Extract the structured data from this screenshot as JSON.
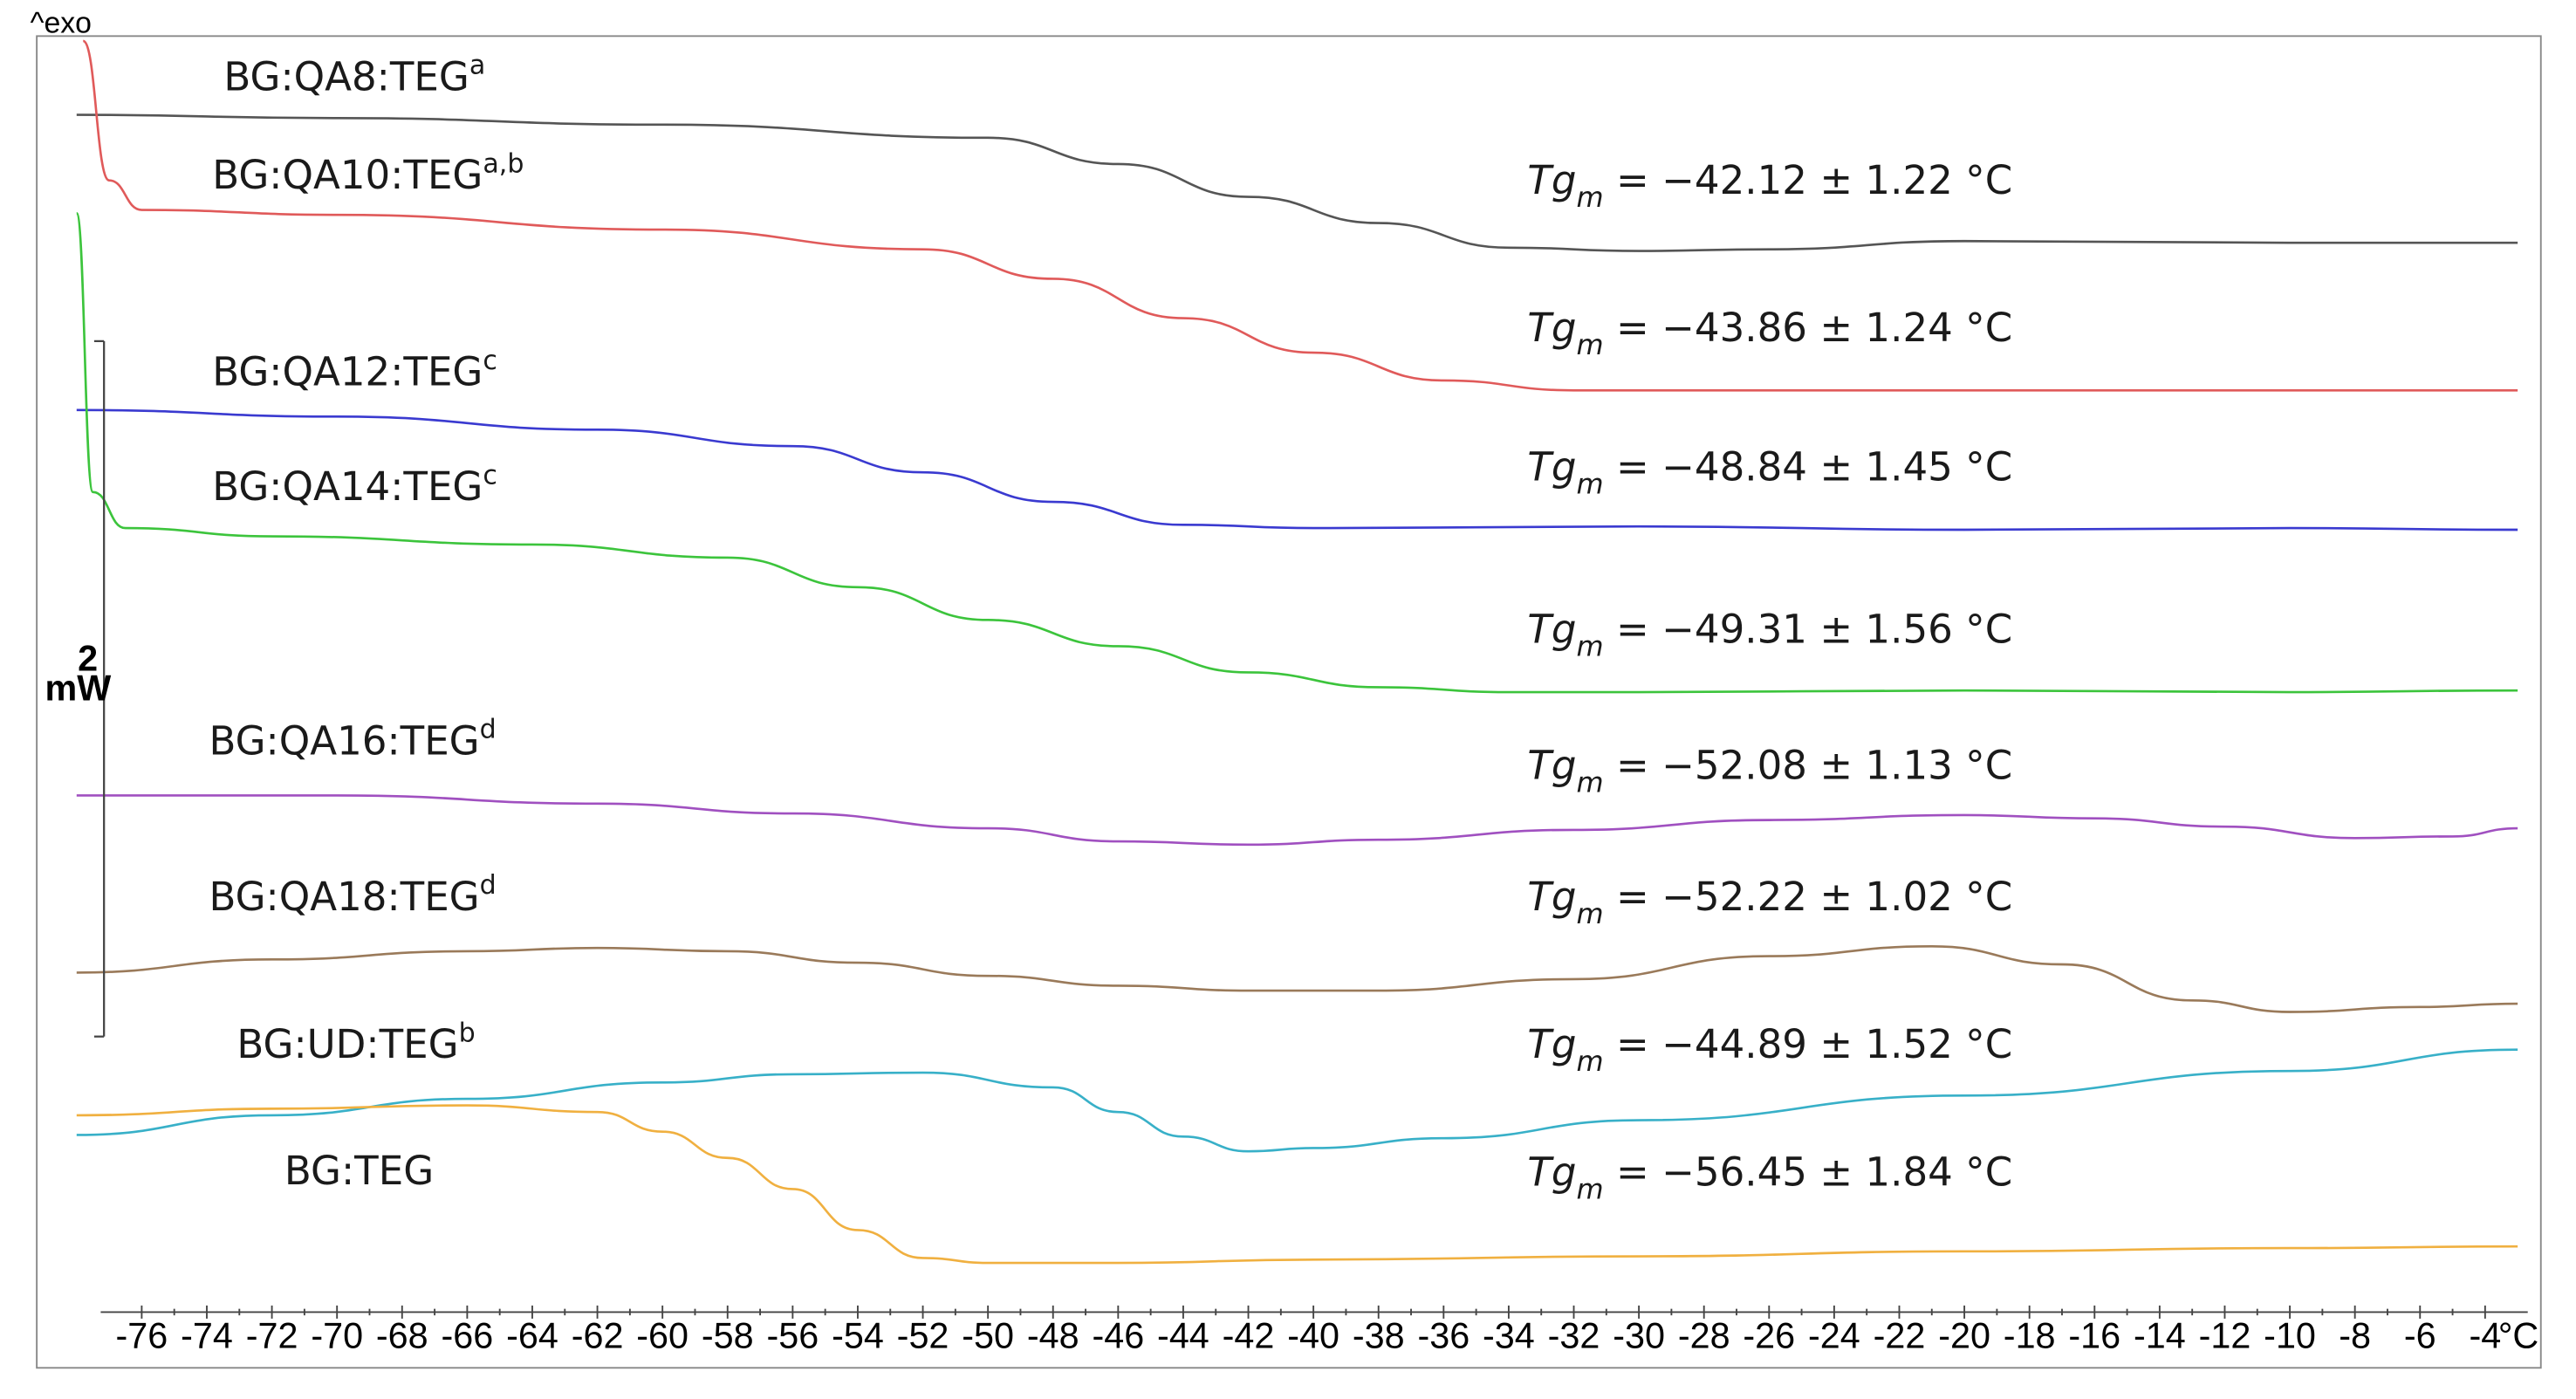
{
  "chart_data": {
    "type": "line",
    "corner_label": "^exo",
    "scale_value": "2",
    "scale_unit": "mW",
    "x_unit": "°C",
    "xlim": [
      -78,
      -3
    ],
    "x_ticks": [
      -76,
      -74,
      -72,
      -70,
      -68,
      -66,
      -64,
      -62,
      -60,
      -58,
      -56,
      -54,
      -52,
      -50,
      -48,
      -46,
      -44,
      -42,
      -40,
      -38,
      -36,
      -34,
      -32,
      -30,
      -28,
      -26,
      -24,
      -22,
      -20,
      -18,
      -16,
      -14,
      -12,
      -10,
      -8,
      -6,
      -4
    ],
    "grid": false,
    "series": [
      {
        "sample": "BG:QA8:TEG",
        "sup": "a",
        "tg_prefix": "Tg",
        "tg_sub": "m",
        "tg_value": " = −42.12 ± 1.22 °C",
        "color": "#555555",
        "x": [
          -78,
          -70,
          -60,
          -50,
          -46,
          -42,
          -38,
          -34,
          -30,
          -26,
          -20,
          -10,
          -3
        ],
        "y": [
          70,
          72,
          76,
          84,
          100,
          120,
          136,
          151,
          153,
          152,
          147,
          148,
          148
        ]
      },
      {
        "sample": "BG:QA10:TEG",
        "sup": "a,b",
        "tg_prefix": "Tg",
        "tg_sub": "m",
        "tg_value": " = −43.86 ± 1.24 °C",
        "color": "#e05a5a",
        "x": [
          -77.8,
          -77,
          -76,
          -70,
          -60,
          -52,
          -48,
          -44,
          -40,
          -36,
          -32,
          -28,
          -20,
          -10,
          -3
        ],
        "y": [
          25,
          110,
          128,
          131,
          140,
          152,
          170,
          194,
          215,
          232,
          238,
          238,
          238,
          238,
          238
        ],
        "lead_in": true
      },
      {
        "sample": "BG:QA12:TEG",
        "sup": "c",
        "tg_prefix": "Tg",
        "tg_sub": "m",
        "tg_value": " = −48.84 ± 1.45 °C",
        "color": "#3a3ad0",
        "x": [
          -78,
          -70,
          -62,
          -56,
          -52,
          -48,
          -44,
          -40,
          -30,
          -20,
          -10,
          -3
        ],
        "y": [
          250,
          254,
          262,
          272,
          288,
          306,
          320,
          322,
          321,
          323,
          322,
          323
        ]
      },
      {
        "sample": "BG:QA14:TEG",
        "sup": "c",
        "tg_prefix": "Tg",
        "tg_sub": "m",
        "tg_value": " = −49.31 ± 1.56 °C",
        "color": "#3cc43c",
        "x": [
          -78,
          -77.5,
          -76.5,
          -72,
          -64,
          -58,
          -54,
          -50,
          -46,
          -42,
          -38,
          -34,
          -30,
          -20,
          -10,
          -3
        ],
        "y": [
          130,
          300,
          322,
          327,
          332,
          340,
          358,
          378,
          394,
          410,
          419,
          422,
          422,
          421,
          422,
          421
        ]
      },
      {
        "sample": "BG:QA16:TEG",
        "sup": "d",
        "tg_prefix": "Tg",
        "tg_sub": "m",
        "tg_value": " = −52.08 ± 1.13 °C",
        "color": "#a050c0",
        "x": [
          -78,
          -70,
          -62,
          -56,
          -50,
          -46,
          -42,
          -38,
          -32,
          -26,
          -20,
          -16,
          -12,
          -8,
          -5,
          -3
        ],
        "y": [
          485,
          485,
          490,
          496,
          505,
          513,
          515,
          512,
          506,
          500,
          497,
          499,
          504,
          511,
          510,
          505
        ]
      },
      {
        "sample": "BG:QA18:TEG",
        "sup": "d",
        "tg_prefix": "Tg",
        "tg_sub": "m",
        "tg_value": " = −52.22 ± 1.02 °C",
        "color": "#9a7a5a",
        "x": [
          -78,
          -72,
          -66,
          -62,
          -58,
          -54,
          -50,
          -46,
          -42,
          -38,
          -32,
          -26,
          -21,
          -17,
          -13,
          -10,
          -6,
          -3
        ],
        "y": [
          593,
          585,
          580,
          578,
          580,
          587,
          595,
          601,
          604,
          604,
          597,
          583,
          577,
          588,
          610,
          617,
          614,
          612
        ]
      },
      {
        "sample": "BG:UD:TEG",
        "sup": "b",
        "tg_prefix": "Tg",
        "tg_sub": "m",
        "tg_value": " = −44.89 ± 1.52 °C",
        "color": "#38b0c8",
        "x": [
          -78,
          -72,
          -66,
          -60,
          -56,
          -52,
          -48,
          -46,
          -44,
          -42,
          -40,
          -36,
          -30,
          -20,
          -10,
          -3
        ],
        "y": [
          692,
          680,
          670,
          660,
          655,
          654,
          663,
          678,
          693,
          702,
          700,
          694,
          683,
          668,
          653,
          640
        ]
      },
      {
        "sample": "BG:TEG",
        "sup": "",
        "tg_prefix": "Tg",
        "tg_sub": "m",
        "tg_value": " = −56.45 ± 1.84 °C",
        "color": "#f0b040",
        "x": [
          -78,
          -72,
          -66,
          -62,
          -60,
          -58,
          -56,
          -54,
          -52,
          -50,
          -46,
          -40,
          -30,
          -20,
          -10,
          -3
        ],
        "y": [
          680,
          676,
          674,
          678,
          690,
          706,
          725,
          750,
          767,
          770,
          770,
          768,
          766,
          763,
          761,
          760
        ]
      }
    ]
  }
}
